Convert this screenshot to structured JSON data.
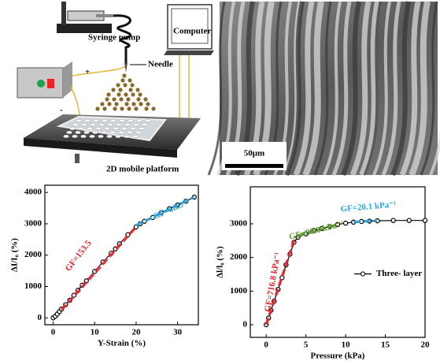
{
  "diagram": {
    "syringe": "Syringe pump",
    "needle": "Needle",
    "computer": "Computer",
    "platform": "2D mobile platform",
    "plus": "+",
    "minus": "-"
  },
  "image": {
    "scale_bar": "50μm"
  },
  "chart_data": [
    {
      "type": "line",
      "xlabel": "Y-Strain (%)",
      "ylabel": "ΔI/I₀ (%)",
      "x": [
        0,
        0.5,
        1,
        1.5,
        2,
        3,
        4,
        5,
        6,
        7,
        8,
        10,
        12,
        14,
        15,
        16,
        18,
        20,
        21,
        22,
        24,
        26,
        28,
        30,
        32,
        34
      ],
      "series": [
        {
          "color": "#000000",
          "values": [
            0,
            50,
            120,
            200,
            280,
            420,
            560,
            720,
            880,
            1040,
            1180,
            1480,
            1780,
            2060,
            2200,
            2360,
            2650,
            2900,
            3000,
            3080,
            3200,
            3350,
            3480,
            3600,
            3720,
            3850
          ]
        }
      ],
      "fits": [
        {
          "label": "GF=153.5",
          "color": "#e8202a",
          "x": [
            2,
            20
          ],
          "values": [
            250,
            2900
          ]
        },
        {
          "label": "GF=60.3",
          "color": "#29a8e0",
          "x": [
            20,
            34
          ],
          "values": [
            2950,
            3850
          ]
        }
      ],
      "xlim": [
        -2,
        35
      ],
      "ylim": [
        -220,
        4230
      ],
      "xticks": [
        0,
        10,
        20,
        30
      ],
      "yticks": [
        0,
        1000,
        2000,
        3000,
        4000
      ]
    },
    {
      "type": "line",
      "xlabel": "Pressure (kPa)",
      "ylabel": "Δl/l₀ (%)",
      "x": [
        0,
        0.3,
        0.6,
        1,
        1.5,
        2,
        2.5,
        3,
        3.5,
        4,
        5,
        6,
        7,
        8,
        9,
        10,
        11,
        12,
        13,
        14,
        16,
        18,
        20
      ],
      "series": [
        {
          "name": "Three- layer",
          "color": "#000000",
          "values": [
            0,
            200,
            430,
            700,
            1050,
            1400,
            1780,
            2100,
            2450,
            2600,
            2700,
            2800,
            2860,
            2920,
            2980,
            3020,
            3050,
            3070,
            3080,
            3090,
            3100,
            3100,
            3100
          ]
        }
      ],
      "fits": [
        {
          "label": "GF=716.8 kPa⁻¹",
          "color": "#e8202a",
          "x": [
            0,
            3.5
          ],
          "values": [
            0,
            2500
          ]
        },
        {
          "label": "GF=80.8 kPa⁻¹",
          "color": "#5e9a2e",
          "x": [
            4,
            9
          ],
          "values": [
            2650,
            2980
          ]
        },
        {
          "label": "GF=20.1 kPa⁻¹",
          "color": "#29a8e0",
          "x": [
            11,
            14
          ],
          "values": [
            3050,
            3100
          ]
        }
      ],
      "legend": "right",
      "xlim": [
        -2,
        20
      ],
      "ylim": [
        -375,
        4100
      ],
      "xticks": [
        0,
        5,
        10,
        15,
        20
      ],
      "yticks": [
        0,
        1000,
        2000,
        3000
      ]
    }
  ]
}
